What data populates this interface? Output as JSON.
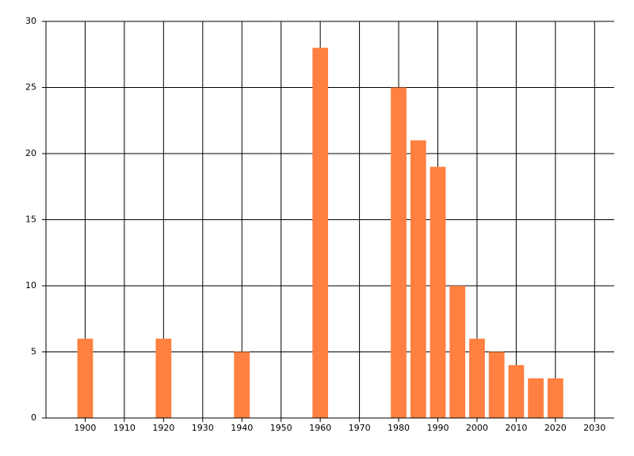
{
  "chart_data": {
    "type": "bar",
    "x": [
      1900,
      1920,
      1940,
      1960,
      1980,
      1985,
      1990,
      1995,
      2000,
      2005,
      2010,
      2015,
      2020
    ],
    "values": [
      6,
      6,
      5,
      28,
      25,
      21,
      19,
      10,
      6,
      5,
      4,
      3,
      3
    ],
    "color": "#ff8040",
    "xlim": [
      1890,
      2035
    ],
    "xticks": [
      1900,
      1910,
      1920,
      1930,
      1940,
      1950,
      1960,
      1970,
      1980,
      1990,
      2000,
      2010,
      2020,
      2030
    ],
    "ylim": [
      0,
      30
    ],
    "yticks": [
      0,
      5,
      10,
      15,
      20,
      25,
      30
    ],
    "grid": true
  }
}
